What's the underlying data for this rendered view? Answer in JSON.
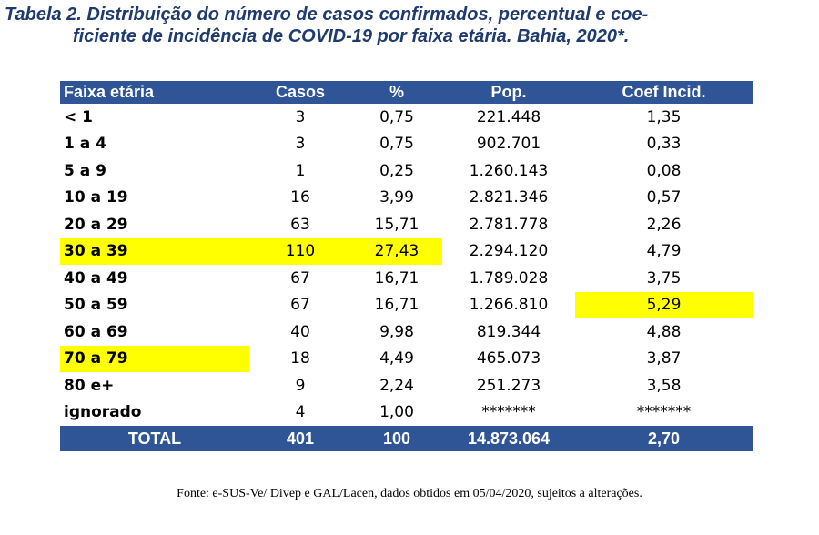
{
  "title": {
    "line1": "Tabela 2. Distribuição do número de casos confirmados, percentual e coe-",
    "line2": "ficiente de incidência de COVID-19 por faixa etária. Bahia, 2020*."
  },
  "table": {
    "headers": [
      "Faixa etária",
      "Casos",
      "%",
      "Pop.",
      "Coef Incid."
    ],
    "rows": [
      {
        "faixa": "< 1",
        "casos": "3",
        "pct": "0,75",
        "pop": "221.448",
        "coef": "1,35"
      },
      {
        "faixa": "1 a 4",
        "casos": "3",
        "pct": "0,75",
        "pop": "902.701",
        "coef": "0,33"
      },
      {
        "faixa": "5 a 9",
        "casos": "1",
        "pct": "0,25",
        "pop": "1.260.143",
        "coef": "0,08"
      },
      {
        "faixa": "10 a 19",
        "casos": "16",
        "pct": "3,99",
        "pop": "2.821.346",
        "coef": "0,57"
      },
      {
        "faixa": "20 a 29",
        "casos": "63",
        "pct": "15,71",
        "pop": "2.781.778",
        "coef": "2,26"
      },
      {
        "faixa": "30 a 39",
        "casos": "110",
        "pct": "27,43",
        "pop": "2.294.120",
        "coef": "4,79"
      },
      {
        "faixa": "40 a 49",
        "casos": "67",
        "pct": "16,71",
        "pop": "1.789.028",
        "coef": "3,75"
      },
      {
        "faixa": "50 a 59",
        "casos": "67",
        "pct": "16,71",
        "pop": "1.266.810",
        "coef": "5,29"
      },
      {
        "faixa": "60 a 69",
        "casos": "40",
        "pct": "9,98",
        "pop": "819.344",
        "coef": "4,88"
      },
      {
        "faixa": "70 a 79",
        "casos": "18",
        "pct": "4,49",
        "pop": "465.073",
        "coef": "3,87"
      },
      {
        "faixa": "80 e+",
        "casos": "9",
        "pct": "2,24",
        "pop": "251.273",
        "coef": "3,58"
      },
      {
        "faixa": "ignorado",
        "casos": "4",
        "pct": "1,00",
        "pop": "*******",
        "coef": "*******"
      }
    ],
    "total": {
      "label": "TOTAL",
      "casos": "401",
      "pct": "100",
      "pop": "14.873.064",
      "coef": "2,70"
    },
    "colors": {
      "header_bg": "#2f5597",
      "header_text": "#ffffff",
      "highlight": "#ffff00"
    }
  },
  "source": "Fonte: e-SUS-Ve/ Divep e GAL/Lacen, dados obtidos em 05/04/2020, sujeitos a alterações."
}
